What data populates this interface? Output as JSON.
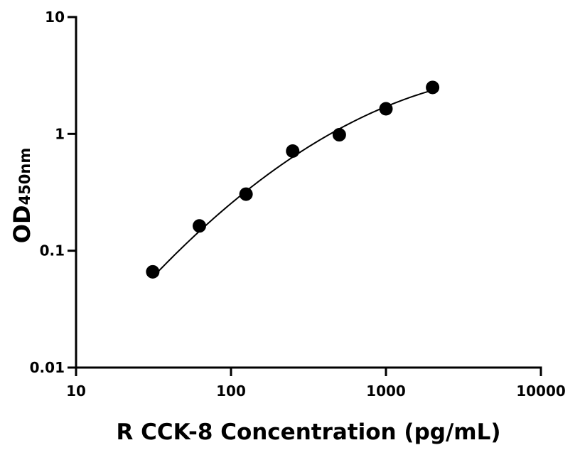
{
  "chart_data": {
    "type": "scatter",
    "xlabel": "R CCK-8 Concentration (pg/mL)",
    "ylabel": "OD",
    "ylabel_subscript": "450nm",
    "xscale": "log",
    "yscale": "log",
    "xlim": [
      10,
      10000
    ],
    "ylim": [
      0.01,
      10
    ],
    "xticks": [
      {
        "value": 10,
        "label": "10"
      },
      {
        "value": 100,
        "label": "100"
      },
      {
        "value": 1000,
        "label": "1000"
      },
      {
        "value": 10000,
        "label": "10000"
      }
    ],
    "yticks": [
      {
        "value": 0.01,
        "label": "0.01"
      },
      {
        "value": 0.1,
        "label": "0.1"
      },
      {
        "value": 1,
        "label": "1"
      },
      {
        "value": 10,
        "label": "10"
      }
    ],
    "grid": false,
    "series": [
      {
        "x": [
          31.25,
          62.5,
          125,
          250,
          500,
          1000,
          2000
        ],
        "y": [
          0.066,
          0.163,
          0.305,
          0.713,
          0.983,
          1.64,
          2.5
        ],
        "color": "#000000"
      }
    ],
    "fit_curve": {
      "x_range": [
        31.25,
        2000
      ],
      "y_at_start": 0.05,
      "color": "#000000"
    }
  }
}
